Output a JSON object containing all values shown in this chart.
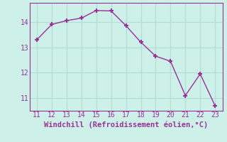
{
  "x": [
    11,
    12,
    13,
    14,
    15,
    16,
    17,
    18,
    19,
    20,
    21,
    22,
    23
  ],
  "y": [
    13.3,
    13.9,
    14.05,
    14.15,
    14.45,
    14.43,
    13.85,
    13.2,
    12.65,
    12.45,
    11.1,
    11.95,
    10.7
  ],
  "line_color": "#993399",
  "marker": "+",
  "marker_size": 5,
  "marker_linewidth": 1.5,
  "xlabel": "Windchill (Refroidissement éolien,°C)",
  "xlim": [
    10.5,
    23.5
  ],
  "ylim": [
    10.5,
    14.75
  ],
  "xticks": [
    11,
    12,
    13,
    14,
    15,
    16,
    17,
    18,
    19,
    20,
    21,
    22,
    23
  ],
  "yticks": [
    11,
    12,
    13,
    14
  ],
  "bg_color": "#cdf0e8",
  "grid_color": "#b0ddd4",
  "line_width": 1.0,
  "xlabel_fontsize": 7.5,
  "tick_fontsize": 7.0,
  "xlabel_color": "#993399",
  "tick_color": "#993399",
  "spine_color": "#993399"
}
